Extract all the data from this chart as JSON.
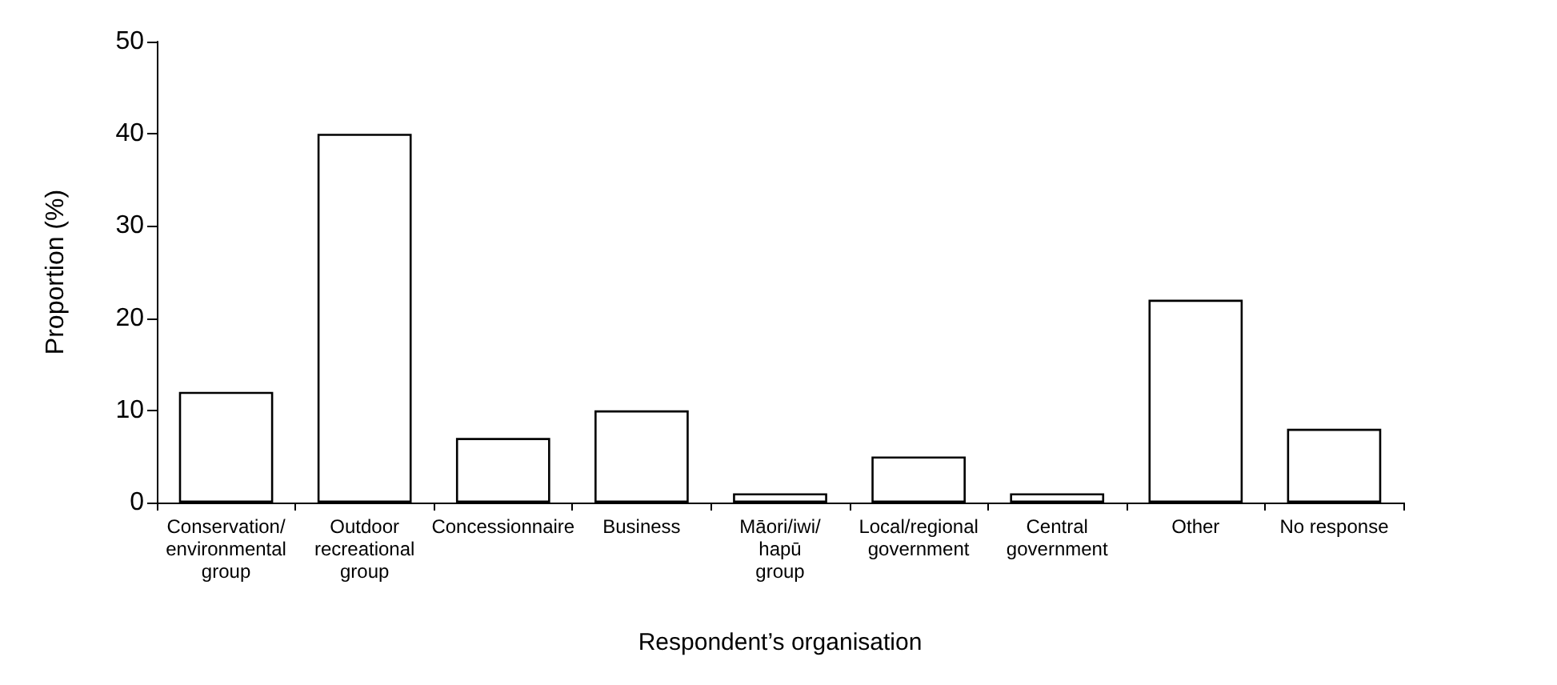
{
  "chart_data": {
    "type": "bar",
    "xlabel": "Respondent’s organisation",
    "ylabel": "Proportion (%)",
    "categories": [
      "Conservation/\nenvironmental\ngroup",
      "Outdoor\nrecreational\ngroup",
      "Concessionnaire",
      "Business",
      "Māori/iwi/\nhapū\ngroup",
      "Local/regional\ngovernment",
      "Central\ngovernment",
      "Other",
      "No response"
    ],
    "values": [
      12,
      40,
      7,
      10,
      1,
      5,
      1,
      22,
      8
    ],
    "color": "#ffffff",
    "ylim": [
      0,
      50
    ],
    "yticks": [
      0,
      10,
      20,
      30,
      40,
      50
    ],
    "grid": false
  }
}
